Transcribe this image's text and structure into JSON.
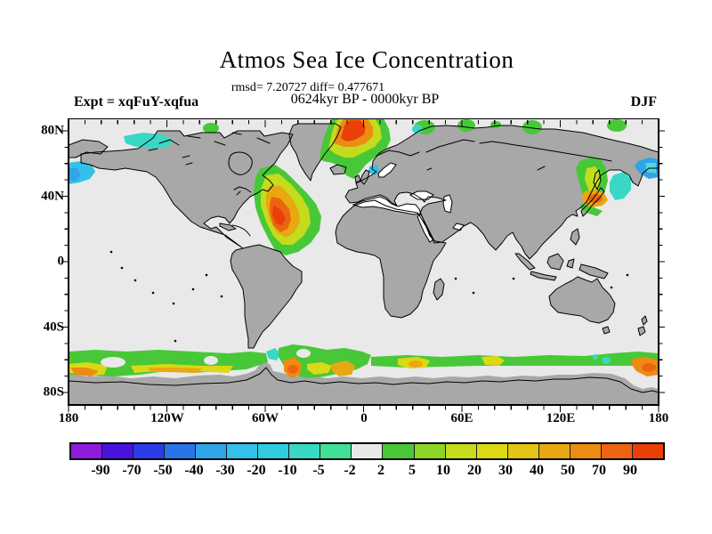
{
  "header": {
    "title": "Atmos Sea Ice Concentration",
    "stats_line": "rmsd= 7.20727 diff= 0.477671",
    "period_line": "0624kyr BP - 0000kyr BP",
    "experiment_label": "Expt = xqFuY-xqfua",
    "season_label": "DJF"
  },
  "map": {
    "y_axis_labels": [
      "80N",
      "40N",
      "0",
      "40S",
      "80S"
    ],
    "x_axis_labels": [
      "180",
      "120W",
      "60W",
      "0",
      "60E",
      "120E",
      "180"
    ]
  },
  "colorbar": {
    "tick_labels": [
      "-90",
      "-70",
      "-50",
      "-40",
      "-30",
      "-20",
      "-10",
      "-5",
      "-2",
      "2",
      "5",
      "10",
      "20",
      "30",
      "40",
      "50",
      "70",
      "90"
    ],
    "segment_colors": [
      "#8E1CDC",
      "#4A14E0",
      "#2C3CE8",
      "#2874E8",
      "#30A4E8",
      "#34C0E8",
      "#30CCDC",
      "#38D8C4",
      "#40E098",
      "#E8E8E8",
      "#48C838",
      "#8CD428",
      "#C4DC1C",
      "#DCD814",
      "#E4C414",
      "#E8A812",
      "#EC8C12",
      "#EC6410",
      "#E84008"
    ]
  },
  "theme": {
    "ocean": "#E9E9E9",
    "land": "#A8A8A8",
    "inland_sea": "#FFFFFF",
    "coast": "#000000",
    "frame": "#000000",
    "ice_green": "#48C838",
    "ice_yellow_green": "#C4DC1C",
    "ice_yellow": "#DCD814",
    "ice_gold": "#E4C414",
    "ice_orange": "#E8A812",
    "ice_mid_orange": "#EC8C12",
    "ice_deep_orange": "#EC6410",
    "ice_red": "#E84008",
    "ice_cyan": "#34C0E8",
    "ice_teal": "#38D8C4",
    "ice_light_cyan": "#50D8E0",
    "ice_sky": "#30A4E8"
  },
  "chart_data": {
    "type": "heatmap",
    "subtype": "filled-contour world map (equirectangular)",
    "title": "Atmos Sea Ice Concentration",
    "subtitle": "0624kyr BP - 0000kyr BP",
    "stats": {
      "rmsd": 7.20727,
      "diff": 0.477671
    },
    "experiment": "xqFuY-xqfua",
    "season": "DJF",
    "x_axis": {
      "label": "longitude",
      "tick_labels": [
        "180",
        "120W",
        "60W",
        "0",
        "60E",
        "120E",
        "180"
      ],
      "range_deg": [
        -180,
        180
      ],
      "minor_tick_deg": 10
    },
    "y_axis": {
      "label": "latitude",
      "tick_labels": [
        "80N",
        "40N",
        "0",
        "40S",
        "80S"
      ],
      "range_deg": [
        -90,
        90
      ],
      "minor_tick_deg": 10
    },
    "scale": {
      "units": "sea ice concentration difference (%)",
      "levels": [
        -90,
        -70,
        -50,
        -40,
        -30,
        -20,
        -10,
        -5,
        -2,
        2,
        5,
        10,
        20,
        30,
        40,
        50,
        70,
        90
      ],
      "colors": [
        "#8E1CDC",
        "#4A14E0",
        "#2C3CE8",
        "#2874E8",
        "#30A4E8",
        "#34C0E8",
        "#30CCDC",
        "#38D8C4",
        "#40E098",
        "#E8E8E8",
        "#48C838",
        "#8CD428",
        "#C4DC1C",
        "#DCD814",
        "#E4C414",
        "#E8A812",
        "#EC8C12",
        "#EC6410",
        "#E84008"
      ],
      "legend_position": "bottom"
    },
    "regions": [
      {
        "area": "Bering Sea, west (near 180W, 55-65N)",
        "value_range": "-30 to -10"
      },
      {
        "area": "Beaufort Sea / north of Alaska (140W-110W, ~75N)",
        "value_range": "-20 to -5"
      },
      {
        "area": "North of Canadian archipelago spot (~55W, 80N)",
        "value_range": "+2 to +5"
      },
      {
        "area": "Labrador Sea / SE of Greenland (60W-35W, 45-70N)",
        "value_range": "+30 to +90 core"
      },
      {
        "area": "Norwegian Sea / north of Iceland (20W-15E, 65-85N)",
        "value_range": "+40 to +90 core"
      },
      {
        "area": "North Sea patch (~5E, 57N)",
        "value_range": "-10 to -2"
      },
      {
        "area": "Siberian Arctic coast spots (35E-155E, ~80N)",
        "value_range": "+2 to +10"
      },
      {
        "area": "Sea of Okhotsk / Sea of Japan (135E-155E, 40-60N)",
        "value_range": "+5 to +40"
      },
      {
        "area": "NW Pacific east of Kamchatka / Bering Sea east edge (160E-180E, 50-60N)",
        "value_range": "-30 to -5"
      },
      {
        "area": "Southern Ocean circumpolar band (~55-65S)",
        "value_range": "+2 to +50, orange cores near 170W, 60W-40W, 55E, 95E, 175E"
      }
    ],
    "grid": false
  }
}
